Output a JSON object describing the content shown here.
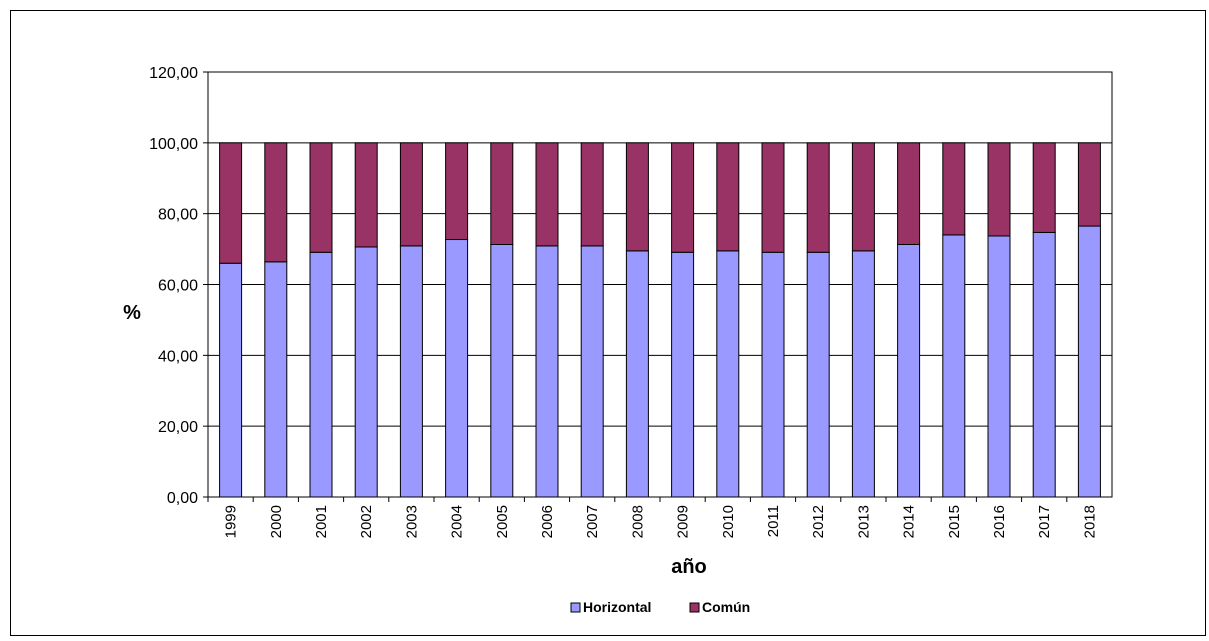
{
  "chart_data": {
    "type": "bar",
    "stacked": true,
    "categories": [
      "1999",
      "2000",
      "2001",
      "2002",
      "2003",
      "2004",
      "2005",
      "2006",
      "2007",
      "2008",
      "2009",
      "2010",
      "2011",
      "2012",
      "2013",
      "2014",
      "2015",
      "2016",
      "2017",
      "2018"
    ],
    "series": [
      {
        "name": "Horizontal",
        "color": "#9999ff",
        "values": [
          66.0,
          66.4,
          69.1,
          70.6,
          70.9,
          72.7,
          71.3,
          70.9,
          70.9,
          69.5,
          69.1,
          69.5,
          69.1,
          69.1,
          69.5,
          71.3,
          74.0,
          73.7,
          74.7,
          76.5
        ]
      },
      {
        "name": "Común",
        "color": "#993366",
        "values": [
          34.0,
          33.6,
          30.9,
          29.4,
          29.1,
          27.3,
          28.7,
          29.1,
          29.1,
          30.5,
          30.9,
          30.5,
          30.9,
          30.9,
          30.5,
          28.7,
          26.0,
          26.3,
          25.3,
          23.5
        ]
      }
    ],
    "xlabel": "año",
    "ylabel": "%",
    "ylim": [
      0,
      120
    ],
    "yticks": [
      "0,00",
      "20,00",
      "40,00",
      "60,00",
      "80,00",
      "100,00",
      "120,00"
    ],
    "grid": true,
    "legend": "bottom"
  }
}
